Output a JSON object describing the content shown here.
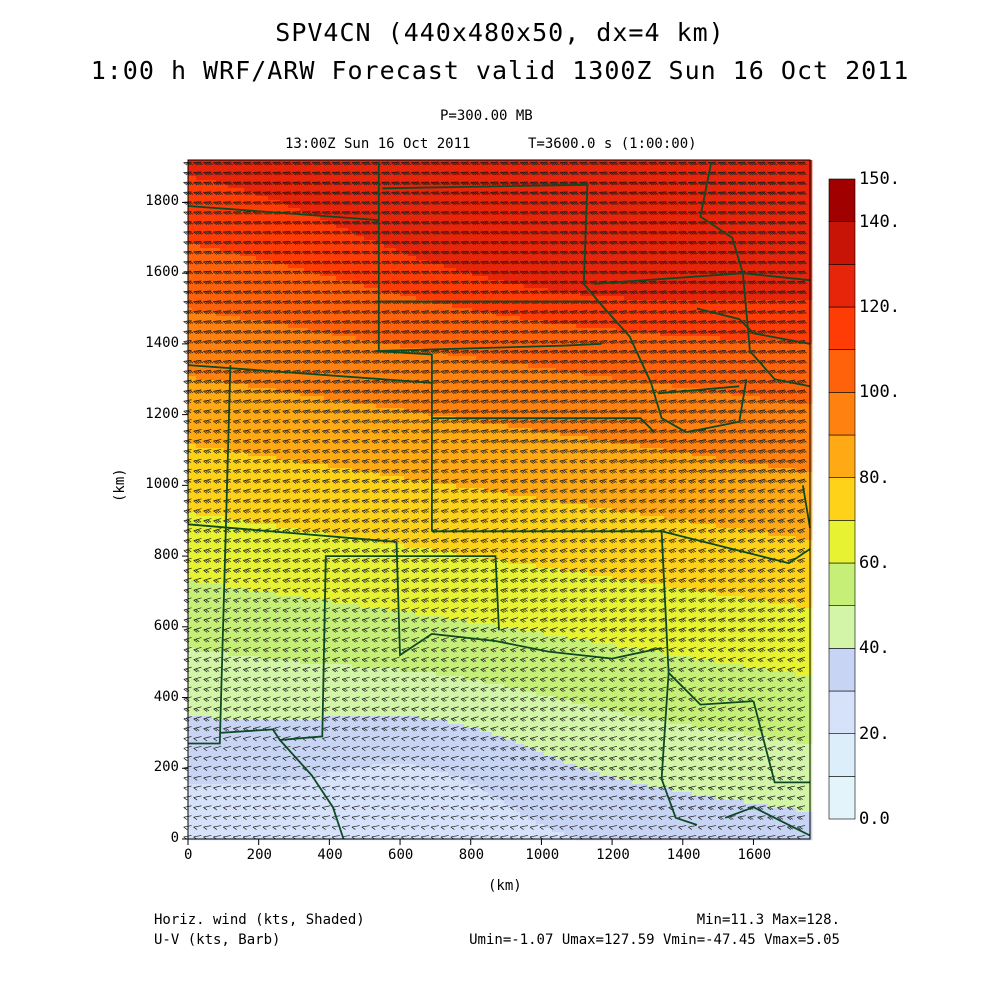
{
  "title_line1": "SPV4CN (440x480x50, dx=4 km)",
  "title_line2": "1:00 h WRF/ARW Forecast valid 1300Z Sun 16 Oct 2011",
  "level": "P=300.00 MB",
  "valid_time": "13:00Z Sun 16 Oct 2011",
  "elapsed": "T=3600.0 s (1:00:00)",
  "x_axis": {
    "label": "(km)",
    "ticks": [
      "0",
      "200",
      "400",
      "600",
      "800",
      "1000",
      "1200",
      "1400",
      "1600"
    ],
    "values": [
      0,
      200,
      400,
      600,
      800,
      1000,
      1200,
      1400,
      1600
    ],
    "range": [
      0,
      1760
    ]
  },
  "y_axis": {
    "label": "(km)",
    "ticks": [
      "0",
      "200",
      "400",
      "600",
      "800",
      "1000",
      "1200",
      "1400",
      "1600",
      "1800"
    ],
    "values": [
      0,
      200,
      400,
      600,
      800,
      1000,
      1200,
      1400,
      1600,
      1800
    ],
    "range": [
      0,
      1920
    ]
  },
  "colorbar": {
    "labels": [
      "150.",
      "140.",
      "120.",
      "100.",
      "80.",
      "60.",
      "40.",
      "20.",
      "0.0"
    ],
    "label_values": [
      150,
      140,
      120,
      100,
      80,
      60,
      40,
      20,
      0
    ],
    "levels": [
      0,
      10,
      20,
      30,
      40,
      50,
      60,
      70,
      80,
      90,
      100,
      110,
      120,
      130,
      140,
      150
    ],
    "colors": [
      "#e4f4fb",
      "#dceefa",
      "#d6e2fa",
      "#c8d4f4",
      "#d2f5a8",
      "#c6ef78",
      "#e6f232",
      "#ffd21a",
      "#ffaa14",
      "#ff8210",
      "#ff620a",
      "#ff3c06",
      "#e6250a",
      "#c81406",
      "#a00000"
    ]
  },
  "footer": {
    "left1": "Horiz. wind (kts, Shaded)",
    "left2": "U-V (kts, Barb)",
    "right1": "Min=11.3 Max=128.",
    "right2": "Umin=-1.07 Umax=127.59 Vmin=-47.45 Vmax=5.05"
  },
  "field_stats": {
    "min": 11.3,
    "max": 128.0,
    "umin": -1.07,
    "umax": 127.59,
    "vmin": -47.45,
    "vmax": 5.05
  },
  "colors": {
    "boundary": "#0d4a24",
    "barb": "#1a1a1a",
    "frame": "#000000"
  }
}
